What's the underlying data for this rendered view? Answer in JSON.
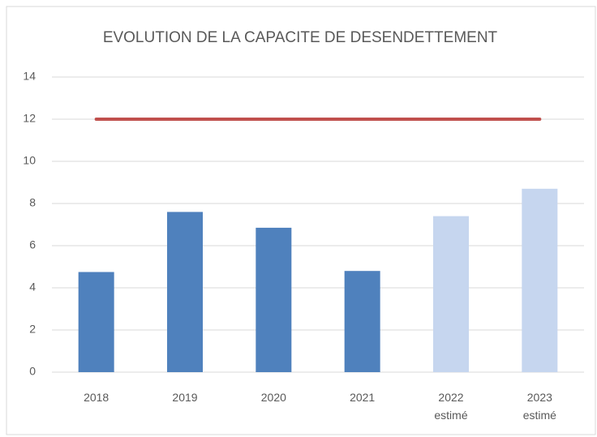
{
  "chart_data": {
    "type": "bar",
    "title": "EVOLUTION DE LA CAPACITE DE DESENDETTEMENT",
    "categories": [
      "2018",
      "2019",
      "2020",
      "2021",
      "2022\nestimé",
      "2023\nestimé"
    ],
    "values": [
      4.75,
      7.6,
      6.85,
      4.8,
      7.4,
      8.7
    ],
    "colors": [
      "#4f81bd",
      "#4f81bd",
      "#4f81bd",
      "#4f81bd",
      "#c6d6ef",
      "#c6d6ef"
    ],
    "reference_line": {
      "value": 12,
      "color": "#c0504d"
    },
    "ylim": [
      0,
      14
    ],
    "yticks": [
      0,
      2,
      4,
      6,
      8,
      10,
      12,
      14
    ],
    "grid": true
  }
}
